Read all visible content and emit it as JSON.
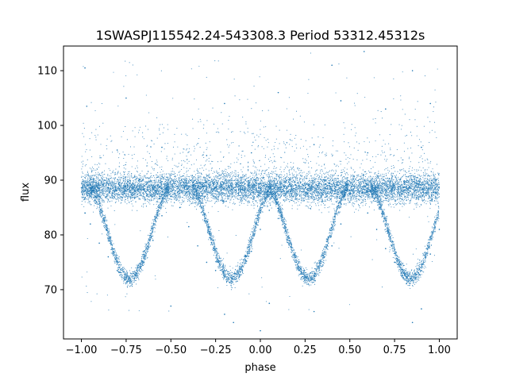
{
  "chart_data": {
    "type": "scatter",
    "title": "1SWASPJ115542.24-543308.3 Period 53312.45312s",
    "xlabel": "phase",
    "ylabel": "flux",
    "xlim": [
      -1.1,
      1.1
    ],
    "ylim": [
      61,
      114.5
    ],
    "xticks": [
      -1.0,
      -0.75,
      -0.5,
      -0.25,
      0.0,
      0.25,
      0.5,
      0.75,
      1.0
    ],
    "xtick_labels": [
      "−1.00",
      "−0.75",
      "−0.50",
      "−0.25",
      "0.00",
      "0.25",
      "0.50",
      "0.75",
      "1.00"
    ],
    "yticks": [
      70,
      80,
      90,
      100,
      110
    ],
    "ytick_labels": [
      "70",
      "80",
      "90",
      "100",
      "110"
    ],
    "grid": false,
    "legend": "none",
    "marker_color": "#1f77b4",
    "series": [
      {
        "x_range": [
          -1.0,
          1.0
        ],
        "baseline_flux": 88.5,
        "eclipse_minima": [
          {
            "phase": -0.73,
            "flux": 72.0
          },
          {
            "phase": -0.16,
            "flux": 72.0
          },
          {
            "phase": 0.27,
            "flux": 72.0
          },
          {
            "phase": 0.84,
            "flux": 72.0
          }
        ],
        "eclipse_half_width": 0.22,
        "points": [
          [
            -1.0,
            88.6
          ],
          [
            -0.98,
            84.0
          ],
          [
            -0.95,
            82.0
          ],
          [
            -0.9,
            78.5
          ],
          [
            -0.85,
            76.0
          ],
          [
            -0.8,
            73.5
          ],
          [
            -0.75,
            72.2
          ],
          [
            -0.73,
            72.0
          ],
          [
            -0.7,
            72.6
          ],
          [
            -0.65,
            75.0
          ],
          [
            -0.6,
            79.0
          ],
          [
            -0.55,
            83.5
          ],
          [
            -0.5,
            87.0
          ],
          [
            -0.45,
            85.0
          ],
          [
            -0.4,
            81.5
          ],
          [
            -0.35,
            78.0
          ],
          [
            -0.3,
            75.0
          ],
          [
            -0.25,
            73.5
          ],
          [
            -0.2,
            72.4
          ],
          [
            -0.16,
            72.0
          ],
          [
            -0.1,
            73.5
          ],
          [
            -0.05,
            77.0
          ],
          [
            0.0,
            81.0
          ],
          [
            0.05,
            84.5
          ],
          [
            0.1,
            83.0
          ],
          [
            0.15,
            79.0
          ],
          [
            0.2,
            75.0
          ],
          [
            0.25,
            72.4
          ],
          [
            0.27,
            72.0
          ],
          [
            0.3,
            72.5
          ],
          [
            0.35,
            74.5
          ],
          [
            0.4,
            78.0
          ],
          [
            0.45,
            82.0
          ],
          [
            0.5,
            86.0
          ],
          [
            0.55,
            86.5
          ],
          [
            0.6,
            84.0
          ],
          [
            0.65,
            81.0
          ],
          [
            0.7,
            77.5
          ],
          [
            0.75,
            75.0
          ],
          [
            0.8,
            73.0
          ],
          [
            0.84,
            72.0
          ],
          [
            0.9,
            73.5
          ],
          [
            0.95,
            76.5
          ],
          [
            1.0,
            81.0
          ],
          [
            -0.95,
            89.2
          ],
          [
            -0.7,
            88.1
          ],
          [
            -0.4,
            88.9
          ],
          [
            -0.1,
            88.3
          ],
          [
            0.2,
            89.0
          ],
          [
            0.5,
            88.2
          ],
          [
            0.8,
            88.7
          ],
          [
            -0.8,
            95.5
          ],
          [
            -0.55,
            96.0
          ],
          [
            -0.3,
            94.5
          ],
          [
            -0.05,
            95.0
          ],
          [
            0.3,
            96.5
          ],
          [
            0.6,
            95.0
          ],
          [
            0.9,
            96.0
          ],
          [
            -0.97,
            103.5
          ],
          [
            -0.75,
            105.0
          ],
          [
            -0.2,
            104.0
          ],
          [
            0.1,
            106.0
          ],
          [
            0.45,
            104.5
          ],
          [
            0.7,
            103.0
          ],
          [
            0.95,
            104.0
          ],
          [
            -0.98,
            110.5
          ],
          [
            0.4,
            111.0
          ],
          [
            0.58,
            113.5
          ],
          [
            0.85,
            110.0
          ],
          [
            -0.5,
            67.0
          ],
          [
            -0.2,
            65.5
          ],
          [
            -0.15,
            64.0
          ],
          [
            0.0,
            62.5
          ],
          [
            0.05,
            67.5
          ],
          [
            0.3,
            66.0
          ],
          [
            0.85,
            64.0
          ],
          [
            0.9,
            66.5
          ]
        ]
      }
    ]
  }
}
